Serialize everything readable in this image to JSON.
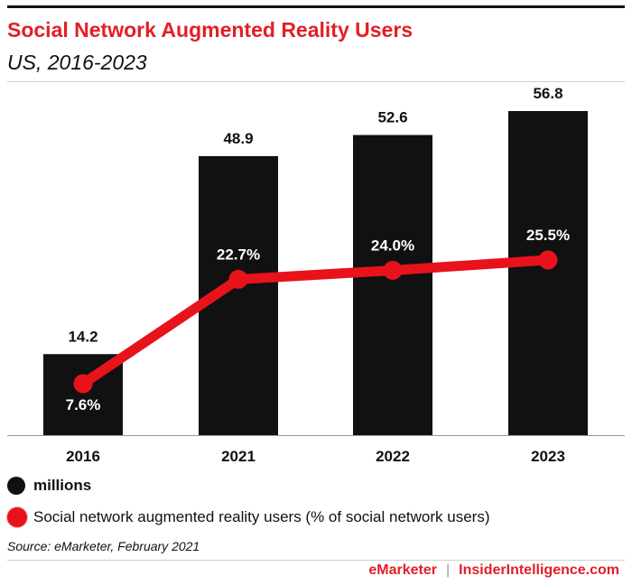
{
  "chart_data": {
    "type": "bar",
    "title": "Social Network Augmented Reality Users",
    "subtitle": "US, 2016-2023",
    "categories": [
      "2016",
      "2021",
      "2022",
      "2023"
    ],
    "series": [
      {
        "name": "millions",
        "type": "bar",
        "values": [
          14.2,
          48.9,
          52.6,
          56.8
        ],
        "labels": [
          "14.2",
          "48.9",
          "52.6",
          "56.8"
        ]
      },
      {
        "name": "Social network augmented reality users (% of social network users)",
        "type": "line",
        "values": [
          7.6,
          22.7,
          24.0,
          25.5
        ],
        "labels": [
          "7.6%",
          "22.7%",
          "24.0%",
          "25.5%"
        ]
      }
    ],
    "legend_position": "bottom",
    "grid": false
  },
  "source": "Source: eMarketer, February 2021",
  "footer": {
    "left": "eMarketer",
    "separator": "|",
    "right": "InsiderIntelligence.com"
  },
  "colors": {
    "bar": "#111111",
    "line": "#e8121b",
    "accent": "#e21f26"
  }
}
